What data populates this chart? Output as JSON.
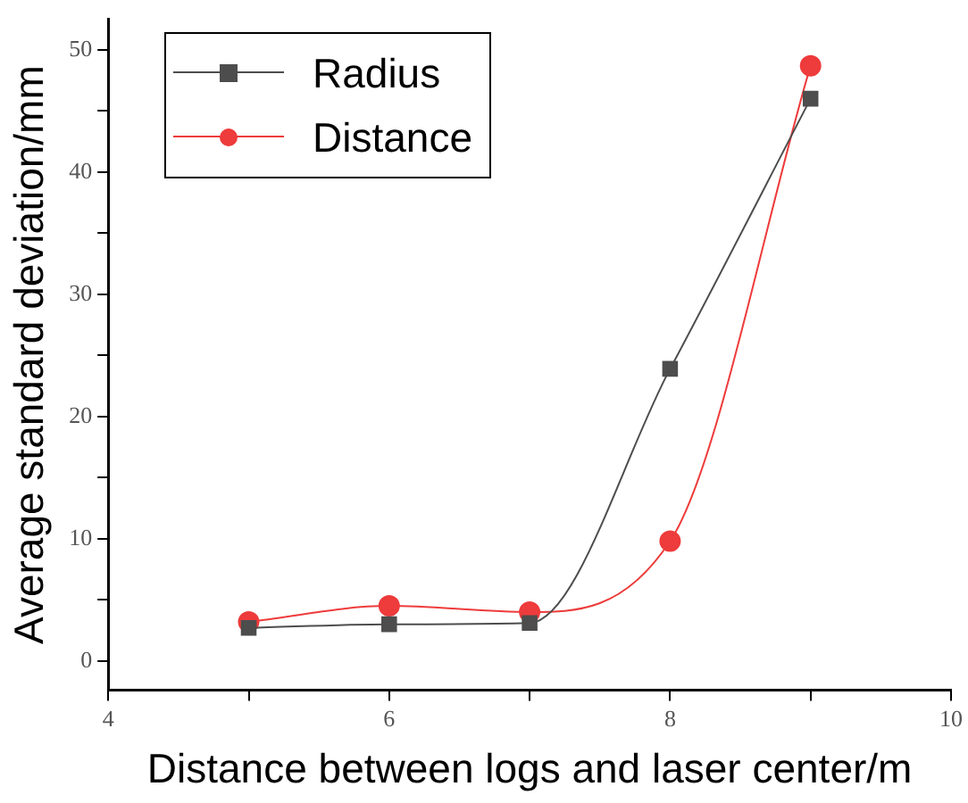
{
  "chart_data": {
    "type": "line",
    "xlabel": "Distance between logs and laser center/m",
    "ylabel": "Average standard deviation/mm",
    "x": [
      5,
      6,
      7,
      8,
      9
    ],
    "series": [
      {
        "name": "Radius",
        "color": "#4d4d4d",
        "marker": "square",
        "values": [
          2.7,
          3.0,
          3.1,
          23.9,
          46.0
        ]
      },
      {
        "name": "Distance",
        "color": "#ee3b3b",
        "marker": "circle",
        "values": [
          3.2,
          4.5,
          4.0,
          9.8,
          48.7
        ]
      }
    ],
    "xlim": [
      4,
      10
    ],
    "xticks": [
      4,
      {
        "value": 5,
        "label": null
      },
      6,
      {
        "value": 7,
        "label": null
      },
      8,
      {
        "value": 9,
        "label": null
      },
      10
    ],
    "ylim": [
      -2.4,
      52.5
    ],
    "yticks": [
      0,
      {
        "value": 5,
        "label": null
      },
      10,
      {
        "value": 15,
        "label": null
      },
      20,
      {
        "value": 25,
        "label": null
      },
      30,
      {
        "value": 35,
        "label": null
      },
      40,
      {
        "value": 45,
        "label": null
      },
      50
    ],
    "grid": false,
    "legend": "top left",
    "line_style": "solid"
  }
}
